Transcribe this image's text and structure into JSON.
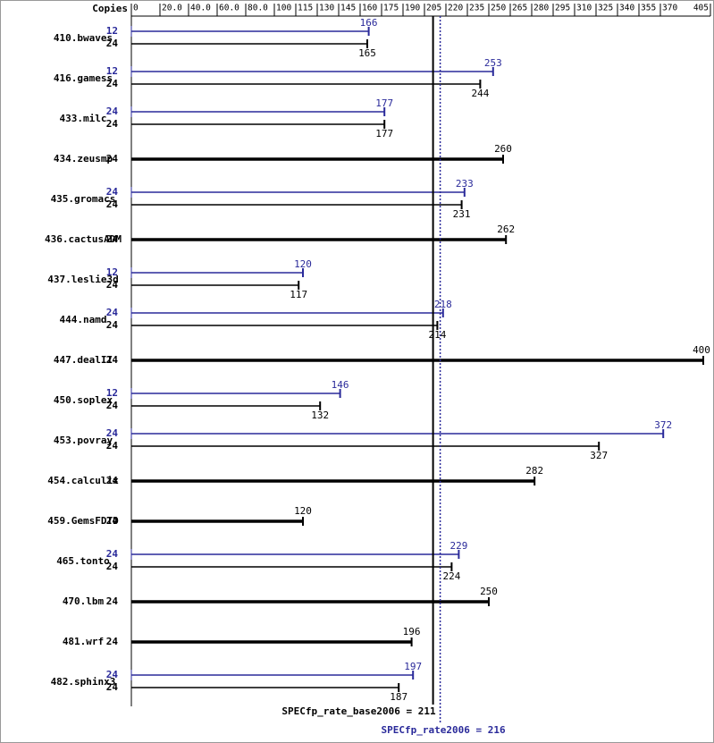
{
  "chart_data": {
    "type": "bar",
    "orientation": "horizontal",
    "copies_header": "Copies",
    "categories": [
      "410.bwaves",
      "416.gamess",
      "433.milc",
      "434.zeusmp",
      "435.gromacs",
      "436.cactusADM",
      "437.leslie3d",
      "444.namd",
      "447.dealII",
      "450.soplex",
      "453.povray",
      "454.calculix",
      "459.GemsFDTD",
      "465.tonto",
      "470.lbm",
      "481.wrf",
      "482.sphinx3"
    ],
    "series": [
      {
        "color": "#2a2a9a",
        "copies": [
          12,
          12,
          24,
          null,
          24,
          null,
          12,
          24,
          null,
          12,
          24,
          null,
          null,
          24,
          null,
          null,
          24
        ],
        "values": [
          166,
          253,
          177,
          null,
          233,
          null,
          120,
          218,
          null,
          146,
          372,
          null,
          null,
          229,
          null,
          null,
          197
        ]
      },
      {
        "color": "#000000",
        "copies": [
          24,
          24,
          24,
          24,
          24,
          24,
          24,
          24,
          24,
          24,
          24,
          24,
          24,
          24,
          24,
          24,
          24
        ],
        "values": [
          165,
          244,
          177,
          260,
          231,
          262,
          117,
          214,
          400,
          132,
          327,
          282,
          120,
          224,
          250,
          196,
          187
        ]
      }
    ],
    "xlim": [
      0,
      405
    ],
    "xticks": [
      0,
      {
        "value": 20,
        "label": "20.0"
      },
      {
        "value": 40,
        "label": "40.0"
      },
      {
        "value": 60,
        "label": "60.0"
      },
      {
        "value": 80,
        "label": "80.0"
      },
      100,
      115,
      130,
      145,
      160,
      175,
      190,
      205,
      220,
      235,
      250,
      265,
      280,
      295,
      310,
      325,
      340,
      355,
      370,
      405
    ],
    "reference_lines": [
      {
        "value": 211,
        "label": "SPECfp_rate_base2006 = 211",
        "color": "#000000",
        "dashed": false
      },
      {
        "value": 216,
        "label": "SPECfp_rate2006 = 216",
        "color": "#2a2a9a",
        "dashed": true
      }
    ]
  }
}
